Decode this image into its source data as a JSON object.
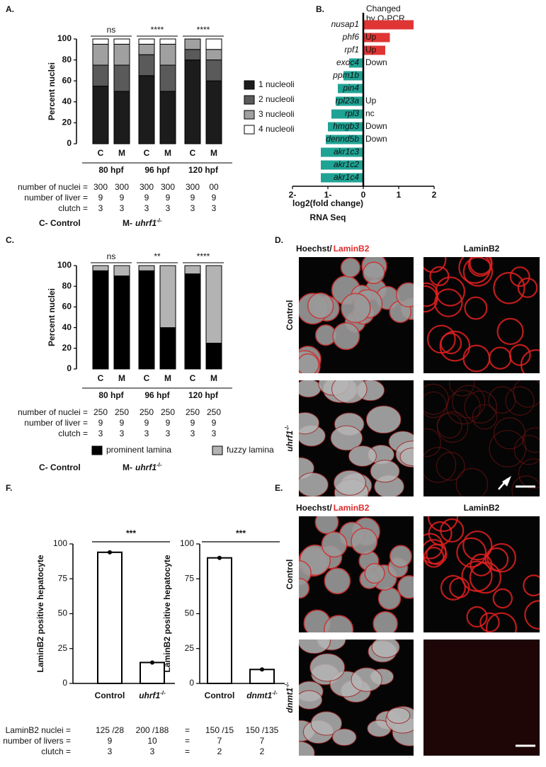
{
  "panel_labels": [
    "A.",
    "B.",
    "C.",
    "D.",
    "E.",
    "F."
  ],
  "chart_data": [
    {
      "type": "stacked_bar",
      "ylabel": "Percent nuclei",
      "categories": [
        "C",
        "M",
        "C",
        "M",
        "C",
        "M"
      ],
      "groups": [
        "80 hpf",
        "96 hpf",
        "120 hpf"
      ],
      "significance": [
        "ns",
        "****",
        "****"
      ],
      "ylim": [
        0,
        100
      ],
      "yticks": [
        0,
        20,
        40,
        60,
        80,
        100
      ],
      "legend": "right",
      "series": [
        {
          "name": "1 nucleoli",
          "color": "#1c1c1c",
          "values": [
            55,
            50,
            65,
            50,
            80,
            60
          ]
        },
        {
          "name": "2 nucleoli",
          "color": "#5a5a5a",
          "values": [
            20,
            25,
            20,
            25,
            10,
            20
          ]
        },
        {
          "name": "3 nucleoli",
          "color": "#a0a0a0",
          "values": [
            20,
            20,
            10,
            20,
            10,
            10
          ]
        },
        {
          "name": "4 nucleoli",
          "color": "#ffffff",
          "values": [
            5,
            5,
            5,
            5,
            0,
            10
          ]
        }
      ],
      "table": [
        {
          "label": "number of nuclei =",
          "cells": [
            "300",
            "300",
            "300",
            "300",
            "300",
            "00"
          ]
        },
        {
          "label": "number of liver =",
          "cells": [
            "9",
            "9",
            "9",
            "9",
            "9",
            "9"
          ]
        },
        {
          "label": "clutch =",
          "cells": [
            "3",
            "3",
            "3",
            "3",
            "3",
            "3"
          ]
        }
      ],
      "footer": {
        "control": "C- Control",
        "mutant": "M-",
        "gene": "uhrf1",
        "genotype": "-/-"
      }
    },
    {
      "type": "hbar",
      "header": [
        "Changed",
        "by Q-PCR"
      ],
      "categories": [
        "nusap1",
        "phf6",
        "rpf1",
        "exoc4",
        "ppm1b",
        "pin4",
        "rpl23a",
        "rpl3",
        "hmgb3",
        "dennd5b",
        "akr1c3",
        "akr1c2",
        "akr1c4"
      ],
      "category_colors": [
        "#111111",
        "#e03535",
        "#e03535",
        "#1fa394",
        "#111111",
        "#111111",
        "#e03535",
        "#555555",
        "#1fa394",
        "#1fa394",
        "#111111",
        "#111111",
        "#111111"
      ],
      "qpcr": [
        null,
        "Up",
        "Up",
        "Down",
        null,
        null,
        "Up",
        "nc",
        "Down",
        "Down",
        null,
        null,
        null
      ],
      "qpcr_colors": [
        null,
        "#e03535",
        "#e03535",
        "#1fa394",
        null,
        null,
        "#e03535",
        "#555555",
        "#1fa394",
        "#1fa394",
        null,
        null,
        null
      ],
      "values": [
        1.42,
        0.75,
        0.62,
        -0.4,
        -0.56,
        -0.72,
        -0.78,
        -0.9,
        -1.0,
        -1.06,
        -1.2,
        -1.2,
        -1.2
      ],
      "positive_color": "#e03535",
      "negative_color": "#1fa394",
      "xlim": [
        -2,
        2
      ],
      "xticks": [
        {
          "value": -2,
          "label": "2-"
        },
        {
          "value": -1,
          "label": "1-"
        },
        0,
        1,
        2
      ],
      "xlabel": "log2(fold change)",
      "subtitle": "RNA Seq"
    },
    {
      "type": "stacked_bar",
      "ylabel": "Percent nuclei",
      "categories": [
        "C",
        "M",
        "C",
        "M",
        "C",
        "M"
      ],
      "groups": [
        "80 hpf",
        "96 hpf",
        "120 hpf"
      ],
      "significance": [
        "ns",
        "**",
        "****"
      ],
      "ylim": [
        0,
        100
      ],
      "yticks": [
        0,
        20,
        40,
        60,
        80,
        100
      ],
      "legend": "bottom",
      "series": [
        {
          "name": "prominent lamina",
          "color": "#000000",
          "values": [
            95,
            90,
            95,
            40,
            92,
            25
          ]
        },
        {
          "name": "fuzzy lamina",
          "color": "#b3b3b3",
          "values": [
            5,
            10,
            5,
            60,
            8,
            75
          ]
        }
      ],
      "table": [
        {
          "label": "number of nuclei =",
          "cells": [
            "250",
            "250",
            "250",
            "250",
            "250",
            "250"
          ]
        },
        {
          "label": "number of liver =",
          "cells": [
            "9",
            "9",
            "9",
            "9",
            "9",
            "9"
          ]
        },
        {
          "label": "clutch =",
          "cells": [
            "3",
            "3",
            "3",
            "3",
            "3",
            "3"
          ]
        }
      ],
      "footer": {
        "control": "C- Control",
        "mutant": "M-",
        "gene": "uhrf1",
        "genotype": "-/-"
      }
    },
    {
      "type": "bar",
      "ylabel": "LaminB2 positive hepatocyte",
      "categories": [
        "Control",
        "uhrf1"
      ],
      "category_suffix": [
        null,
        "-/-"
      ],
      "values": [
        94,
        15
      ],
      "color": "#ffffff",
      "significance": "***",
      "ylim": [
        0,
        100
      ],
      "yticks": [
        0,
        25,
        50,
        75,
        100
      ],
      "table": [
        {
          "label": "LaminB2 nuclei =",
          "cells": [
            "125 /28",
            "200 /188"
          ]
        },
        {
          "label": "number of livers =",
          "cells": [
            "9",
            "10"
          ]
        },
        {
          "label": "clutch =",
          "cells": [
            "3",
            "3"
          ]
        }
      ]
    },
    {
      "type": "bar",
      "ylabel": "LaminB2 positive hepatocyte",
      "categories": [
        "Control",
        "dnmt1"
      ],
      "category_suffix": [
        null,
        "-/-"
      ],
      "values": [
        90,
        10
      ],
      "color": "#ffffff",
      "significance": "***",
      "ylim": [
        0,
        100
      ],
      "yticks": [
        0,
        25,
        50,
        75,
        100
      ],
      "table": [
        {
          "label": "=",
          "cells": [
            "150 /15",
            "150 /135"
          ]
        },
        {
          "label": "=",
          "cells": [
            "7",
            "7"
          ]
        },
        {
          "label": "=",
          "cells": [
            "2",
            "2"
          ]
        }
      ]
    }
  ],
  "panel_D": {
    "stain": "Hoechst/",
    "marker": "LaminB2",
    "marker_right": "LaminB2",
    "row_control": "Control",
    "row_gene": "uhrf1",
    "row_genotype": "-/-"
  },
  "panel_E": {
    "stain": "Hoechst/",
    "marker": "LaminB2",
    "marker_right": "LaminB2",
    "row_control": "Control",
    "row_gene": "dnmt1",
    "row_genotype": "-/-"
  }
}
